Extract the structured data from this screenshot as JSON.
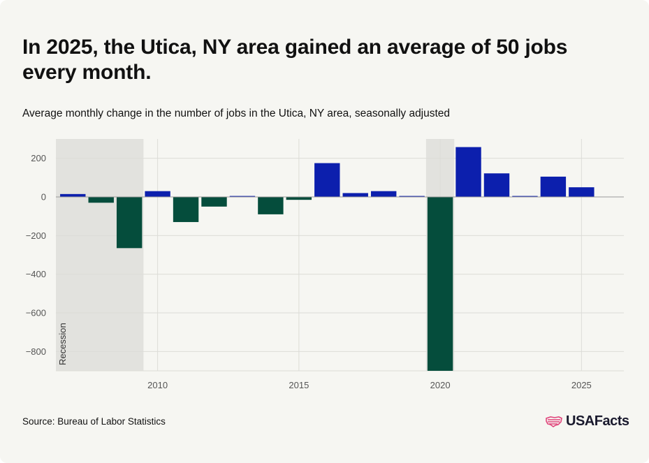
{
  "title": "In 2025, the Utica, NY area gained an average of 50 jobs every month.",
  "subtitle": "Average monthly change in the number of jobs in the Utica, NY area, seasonally adjusted",
  "source": "Source: Bureau of Labor Statistics",
  "logo": {
    "text": "USAFacts",
    "icon": "us-map-flag-icon"
  },
  "colors": {
    "positive": "#0c1fad",
    "negative": "#054d3c",
    "recession": "#e2e2de",
    "grid": "#dcdcd7",
    "zero_line": "#9a9a9a",
    "background": "#f6f6f2"
  },
  "chart_data": {
    "type": "bar",
    "title": "",
    "xlabel": "",
    "ylabel": "",
    "x": [
      2007,
      2008,
      2009,
      2010,
      2011,
      2012,
      2013,
      2014,
      2015,
      2016,
      2017,
      2018,
      2019,
      2020,
      2021,
      2022,
      2023,
      2024,
      2025
    ],
    "values": [
      15,
      -30,
      -265,
      30,
      -130,
      -50,
      5,
      -90,
      -15,
      175,
      20,
      30,
      5,
      -900,
      258,
      122,
      5,
      105,
      50
    ],
    "ylim": [
      -900,
      300
    ],
    "xlim": [
      2006.4,
      2026.5
    ],
    "yticks": [
      200,
      0,
      -200,
      -400,
      -600,
      -800
    ],
    "ytick_labels": [
      "200",
      "0",
      "−200",
      "−400",
      "−600",
      "−800"
    ],
    "xticks": [
      2010,
      2015,
      2020,
      2025
    ],
    "xtick_labels": [
      "2010",
      "2015",
      "2020",
      "2025"
    ],
    "recessions": [
      {
        "start": 2006.4,
        "end": 2009.5,
        "label": "Recession"
      },
      {
        "start": 2019.5,
        "end": 2020.5,
        "label": ""
      }
    ],
    "grid": true,
    "legend": "none"
  }
}
